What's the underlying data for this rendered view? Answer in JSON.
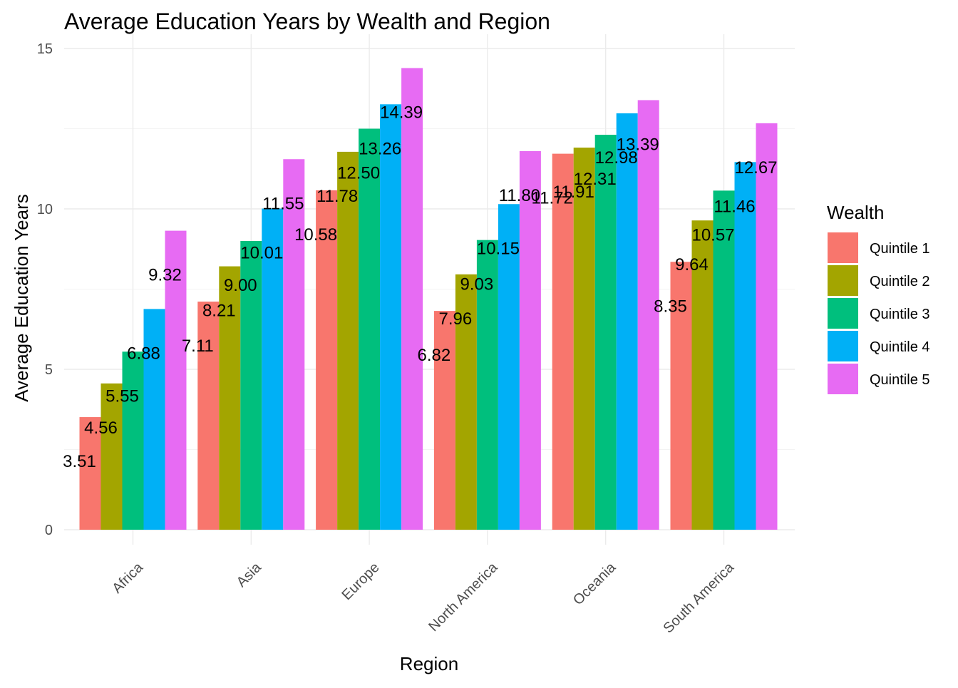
{
  "chart_data": {
    "type": "bar",
    "title": "Average Education Years by Wealth and Region",
    "xlabel": "Region",
    "ylabel": "Average Education Years",
    "ylim": [
      0,
      15
    ],
    "yticks": [
      0,
      5,
      10,
      15
    ],
    "grid": true,
    "legend": {
      "title": "Wealth",
      "position": "right"
    },
    "categories": [
      "Africa",
      "Asia",
      "Europe",
      "North America",
      "Oceania",
      "South America"
    ],
    "series": [
      {
        "name": "Quintile 1",
        "color": "#F8766D",
        "values": [
          3.51,
          7.11,
          10.58,
          6.82,
          11.72,
          8.35
        ],
        "labels": [
          "3.51",
          "7.11",
          "10.58",
          "6.82",
          "11.72",
          "8.35"
        ]
      },
      {
        "name": "Quintile 2",
        "color": "#A3A500",
        "values": [
          4.56,
          8.21,
          11.78,
          7.96,
          11.91,
          9.64
        ],
        "labels": [
          "4.56",
          "8.21",
          "11.78",
          "7.96",
          "11.91",
          "9.64"
        ]
      },
      {
        "name": "Quintile 3",
        "color": "#00BF7D",
        "values": [
          5.55,
          9.0,
          12.5,
          9.03,
          12.31,
          10.57
        ],
        "labels": [
          "5.55",
          "9.00",
          "12.50",
          "9.03",
          "12.31",
          "10.57"
        ]
      },
      {
        "name": "Quintile 4",
        "color": "#00B0F6",
        "values": [
          6.88,
          10.01,
          13.26,
          10.15,
          12.98,
          11.46
        ],
        "labels": [
          "6.88",
          "10.01",
          "13.26",
          "10.15",
          "12.98",
          "11.46"
        ]
      },
      {
        "name": "Quintile 5",
        "color": "#E76BF3",
        "values": [
          9.32,
          11.55,
          14.39,
          11.8,
          13.39,
          12.67
        ],
        "labels": [
          "9.32",
          "11.55",
          "14.39",
          "11.80",
          "13.39",
          "12.67"
        ]
      }
    ]
  }
}
